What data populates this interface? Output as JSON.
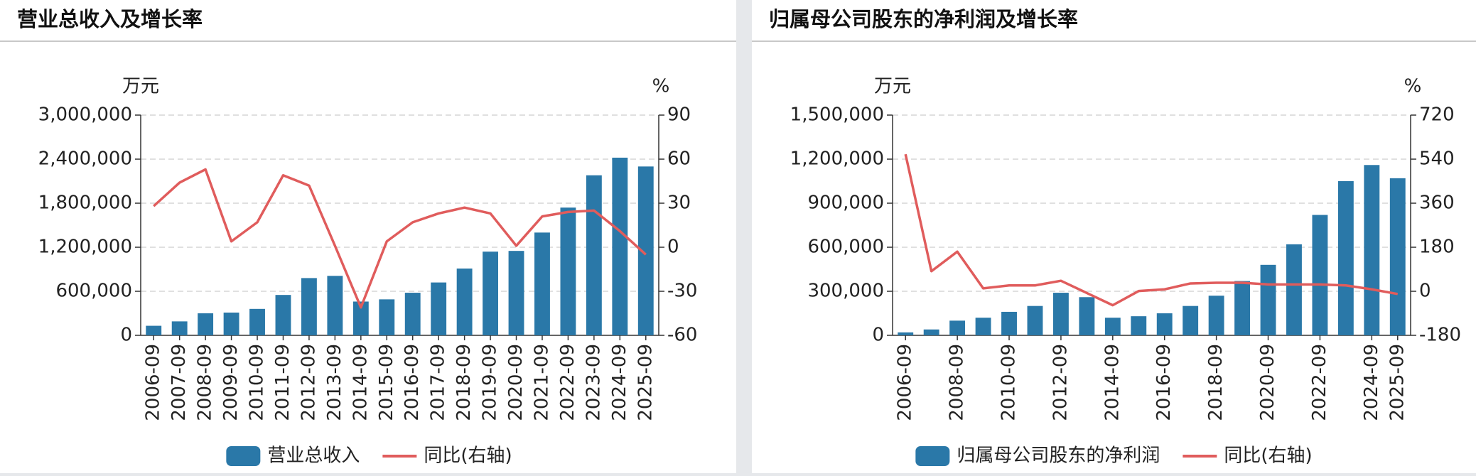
{
  "chart_data": [
    {
      "type": "bar",
      "title": "营业总收入及增长率",
      "y_unit": "万元",
      "y2_unit": "%",
      "categories": [
        "2006-09",
        "2007-09",
        "2008-09",
        "2009-09",
        "2010-09",
        "2011-09",
        "2012-09",
        "2013-09",
        "2014-09",
        "2015-09",
        "2016-09",
        "2017-09",
        "2018-09",
        "2019-09",
        "2020-09",
        "2021-09",
        "2022-09",
        "2023-09",
        "2024-09",
        "2025-09"
      ],
      "series": [
        {
          "name": "营业总收入",
          "color": "#2a78a8",
          "values": [
            130000,
            190000,
            300000,
            310000,
            360000,
            550000,
            780000,
            810000,
            460000,
            490000,
            580000,
            720000,
            910000,
            1140000,
            1150000,
            1400000,
            1740000,
            2180000,
            2420000,
            2300000
          ]
        },
        {
          "name": "同比(右轴)",
          "color": "#e05c5c",
          "type": "line",
          "axis": "y2",
          "values": [
            28,
            44,
            53,
            4,
            17,
            49,
            42,
            1,
            -41,
            4,
            17,
            23,
            27,
            23,
            1,
            21,
            24,
            25,
            11,
            -5
          ]
        }
      ],
      "ylim": [
        0,
        3000000
      ],
      "yticks": [
        0,
        {
          "value": 600000,
          "label": "600,000"
        },
        {
          "value": 1200000,
          "label": "1,200,000"
        },
        {
          "value": 1800000,
          "label": "1,800,000"
        },
        {
          "value": 2400000,
          "label": "2,400,000"
        },
        {
          "value": 3000000,
          "label": "3,000,000"
        }
      ],
      "y2lim": [
        -60,
        90
      ],
      "y2ticks": [
        -60,
        -30,
        0,
        30,
        60,
        90
      ],
      "grid": true
    },
    {
      "type": "bar",
      "title": "归属母公司股东的净利润及增长率",
      "y_unit": "万元",
      "y2_unit": "%",
      "categories": [
        "2006-09",
        null,
        "2008-09",
        null,
        "2010-09",
        null,
        "2012-09",
        null,
        "2014-09",
        null,
        "2016-09",
        null,
        "2018-09",
        null,
        "2020-09",
        null,
        "2022-09",
        null,
        "2024-09",
        "2025-09"
      ],
      "series": [
        {
          "name": "归属母公司股东的净利润",
          "color": "#2a78a8",
          "values": [
            20000,
            40000,
            100000,
            120000,
            160000,
            200000,
            290000,
            260000,
            120000,
            130000,
            150000,
            200000,
            270000,
            370000,
            480000,
            620000,
            820000,
            1050000,
            1160000,
            1070000
          ]
        },
        {
          "name": "同比(右轴)",
          "color": "#e05c5c",
          "type": "line",
          "axis": "y2",
          "values": [
            560,
            82,
            162,
            12,
            24,
            24,
            43,
            -7,
            -57,
            1,
            8,
            32,
            35,
            35,
            28,
            28,
            28,
            24,
            8,
            -11
          ]
        }
      ],
      "ylim": [
        0,
        1500000
      ],
      "yticks": [
        0,
        {
          "value": 300000,
          "label": "300,000"
        },
        {
          "value": 600000,
          "label": "600,000"
        },
        {
          "value": 900000,
          "label": "900,000"
        },
        {
          "value": 1200000,
          "label": "1,200,000"
        },
        {
          "value": 1500000,
          "label": "1,500,000"
        }
      ],
      "y2lim": [
        -180,
        720
      ],
      "y2ticks": [
        -180,
        0,
        180,
        360,
        540,
        720
      ],
      "grid": true
    }
  ]
}
